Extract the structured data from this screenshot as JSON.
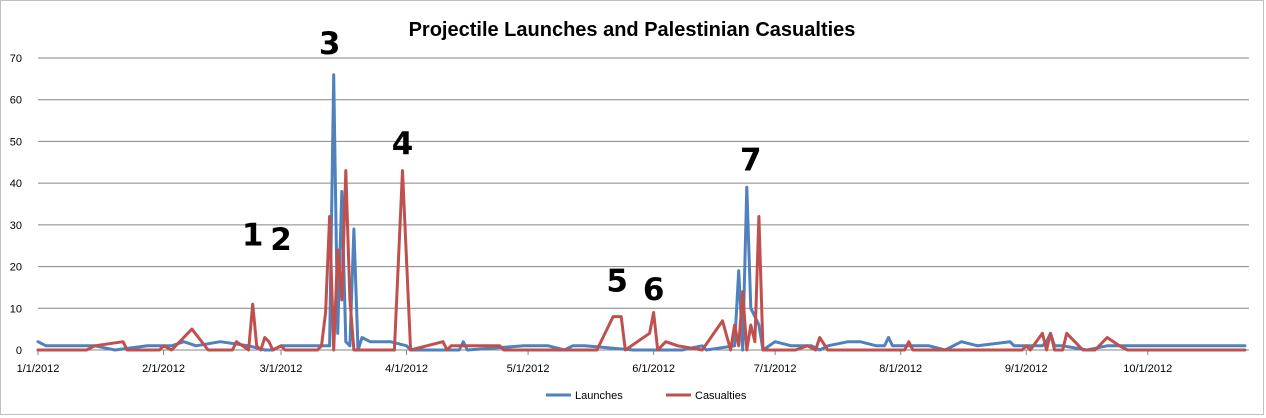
{
  "chart_data": {
    "type": "line",
    "title": "Projectile Launches and Palestinian Casualties",
    "xlabel": "",
    "ylabel": "",
    "x_axis": {
      "type": "date",
      "start": "2012-01-01",
      "end": "2012-10-26",
      "ticks": [
        {
          "date": "2012-01-01",
          "label": "1/1/2012"
        },
        {
          "date": "2012-02-01",
          "label": "2/1/2012"
        },
        {
          "date": "2012-03-01",
          "label": "3/1/2012"
        },
        {
          "date": "2012-04-01",
          "label": "4/1/2012"
        },
        {
          "date": "2012-05-01",
          "label": "5/1/2012"
        },
        {
          "date": "2012-06-01",
          "label": "6/1/2012"
        },
        {
          "date": "2012-07-01",
          "label": "7/1/2012"
        },
        {
          "date": "2012-08-01",
          "label": "8/1/2012"
        },
        {
          "date": "2012-09-01",
          "label": "9/1/2012"
        },
        {
          "date": "2012-10-01",
          "label": "10/1/2012"
        }
      ]
    },
    "ylim": [
      0,
      70
    ],
    "yticks": [
      0,
      10,
      20,
      30,
      40,
      50,
      60,
      70
    ],
    "grid": true,
    "legend_position": "bottom",
    "series": [
      {
        "name": "Launches",
        "color": "#4f81bd",
        "points": [
          [
            "2012-01-01",
            2
          ],
          [
            "2012-01-03",
            1
          ],
          [
            "2012-01-15",
            1
          ],
          [
            "2012-01-20",
            0
          ],
          [
            "2012-01-28",
            1
          ],
          [
            "2012-02-03",
            1
          ],
          [
            "2012-02-06",
            2
          ],
          [
            "2012-02-09",
            1
          ],
          [
            "2012-02-15",
            2
          ],
          [
            "2012-02-22",
            1
          ],
          [
            "2012-02-26",
            0
          ],
          [
            "2012-02-28",
            0
          ],
          [
            "2012-03-01",
            1
          ],
          [
            "2012-03-04",
            1
          ],
          [
            "2012-03-08",
            1
          ],
          [
            "2012-03-12",
            1
          ],
          [
            "2012-03-13",
            1
          ],
          [
            "2012-03-14",
            66
          ],
          [
            "2012-03-15",
            4
          ],
          [
            "2012-03-16",
            38
          ],
          [
            "2012-03-17",
            2
          ],
          [
            "2012-03-18",
            1
          ],
          [
            "2012-03-19",
            29
          ],
          [
            "2012-03-20",
            0
          ],
          [
            "2012-03-21",
            3
          ],
          [
            "2012-03-23",
            2
          ],
          [
            "2012-03-28",
            2
          ],
          [
            "2012-04-01",
            1
          ],
          [
            "2012-04-02",
            0
          ],
          [
            "2012-04-14",
            0
          ],
          [
            "2012-04-15",
            2
          ],
          [
            "2012-04-16",
            0
          ],
          [
            "2012-04-30",
            1
          ],
          [
            "2012-05-06",
            1
          ],
          [
            "2012-05-10",
            0
          ],
          [
            "2012-05-12",
            1
          ],
          [
            "2012-05-15",
            1
          ],
          [
            "2012-05-27",
            0
          ],
          [
            "2012-06-08",
            0
          ],
          [
            "2012-06-13",
            1
          ],
          [
            "2012-06-14",
            0
          ],
          [
            "2012-06-21",
            1
          ],
          [
            "2012-06-22",
            19
          ],
          [
            "2012-06-23",
            0
          ],
          [
            "2012-06-24",
            39
          ],
          [
            "2012-06-25",
            10
          ],
          [
            "2012-06-26",
            8
          ],
          [
            "2012-06-27",
            6
          ],
          [
            "2012-06-28",
            0
          ],
          [
            "2012-07-01",
            2
          ],
          [
            "2012-07-05",
            1
          ],
          [
            "2012-07-10",
            1
          ],
          [
            "2012-07-12",
            0
          ],
          [
            "2012-07-14",
            1
          ],
          [
            "2012-07-19",
            2
          ],
          [
            "2012-07-22",
            2
          ],
          [
            "2012-07-26",
            1
          ],
          [
            "2012-07-28",
            1
          ],
          [
            "2012-07-29",
            3
          ],
          [
            "2012-07-30",
            1
          ],
          [
            "2012-08-02",
            1
          ],
          [
            "2012-08-08",
            1
          ],
          [
            "2012-08-12",
            0
          ],
          [
            "2012-08-16",
            2
          ],
          [
            "2012-08-20",
            1
          ],
          [
            "2012-08-28",
            2
          ],
          [
            "2012-08-29",
            1
          ],
          [
            "2012-09-05",
            1
          ],
          [
            "2012-09-06",
            2
          ],
          [
            "2012-09-07",
            4
          ],
          [
            "2012-09-08",
            1
          ],
          [
            "2012-09-10",
            1
          ],
          [
            "2012-09-16",
            0
          ],
          [
            "2012-09-21",
            1
          ],
          [
            "2012-09-25",
            1
          ],
          [
            "2012-10-01",
            1
          ],
          [
            "2012-10-08",
            1
          ],
          [
            "2012-10-15",
            1
          ],
          [
            "2012-10-25",
            1
          ]
        ]
      },
      {
        "name": "Casualties",
        "color": "#c0504d",
        "points": [
          [
            "2012-01-01",
            0
          ],
          [
            "2012-01-13",
            0
          ],
          [
            "2012-01-15",
            1
          ],
          [
            "2012-01-22",
            2
          ],
          [
            "2012-01-23",
            0
          ],
          [
            "2012-01-31",
            0
          ],
          [
            "2012-02-01",
            1
          ],
          [
            "2012-02-03",
            0
          ],
          [
            "2012-02-08",
            5
          ],
          [
            "2012-02-12",
            0
          ],
          [
            "2012-02-18",
            0
          ],
          [
            "2012-02-19",
            2
          ],
          [
            "2012-02-22",
            0
          ],
          [
            "2012-02-23",
            11
          ],
          [
            "2012-02-24",
            1
          ],
          [
            "2012-02-25",
            0
          ],
          [
            "2012-02-26",
            3
          ],
          [
            "2012-02-27",
            2
          ],
          [
            "2012-02-28",
            0
          ],
          [
            "2012-03-01",
            1
          ],
          [
            "2012-03-02",
            0
          ],
          [
            "2012-03-10",
            0
          ],
          [
            "2012-03-11",
            1
          ],
          [
            "2012-03-12",
            9
          ],
          [
            "2012-03-13",
            32
          ],
          [
            "2012-03-14",
            0
          ],
          [
            "2012-03-15",
            24
          ],
          [
            "2012-03-16",
            12
          ],
          [
            "2012-03-17",
            43
          ],
          [
            "2012-03-18",
            12
          ],
          [
            "2012-03-19",
            0
          ],
          [
            "2012-03-20",
            0
          ],
          [
            "2012-03-29",
            0
          ],
          [
            "2012-03-31",
            43
          ],
          [
            "2012-04-02",
            0
          ],
          [
            "2012-04-06",
            1
          ],
          [
            "2012-04-10",
            2
          ],
          [
            "2012-04-11",
            0
          ],
          [
            "2012-04-12",
            1
          ],
          [
            "2012-04-24",
            1
          ],
          [
            "2012-04-25",
            0
          ],
          [
            "2012-05-18",
            0
          ],
          [
            "2012-05-22",
            8
          ],
          [
            "2012-05-24",
            8
          ],
          [
            "2012-05-25",
            0
          ],
          [
            "2012-05-31",
            4
          ],
          [
            "2012-06-01",
            9
          ],
          [
            "2012-06-02",
            0
          ],
          [
            "2012-06-04",
            2
          ],
          [
            "2012-06-07",
            1
          ],
          [
            "2012-06-13",
            0
          ],
          [
            "2012-06-18",
            7
          ],
          [
            "2012-06-20",
            0
          ],
          [
            "2012-06-21",
            6
          ],
          [
            "2012-06-22",
            1
          ],
          [
            "2012-06-23",
            14
          ],
          [
            "2012-06-24",
            0
          ],
          [
            "2012-06-25",
            6
          ],
          [
            "2012-06-26",
            2
          ],
          [
            "2012-06-27",
            32
          ],
          [
            "2012-06-28",
            0
          ],
          [
            "2012-07-06",
            0
          ],
          [
            "2012-07-09",
            1
          ],
          [
            "2012-07-11",
            0
          ],
          [
            "2012-07-12",
            3
          ],
          [
            "2012-07-14",
            0
          ],
          [
            "2012-08-02",
            0
          ],
          [
            "2012-08-03",
            2
          ],
          [
            "2012-08-04",
            0
          ],
          [
            "2012-08-31",
            0
          ],
          [
            "2012-09-01",
            1
          ],
          [
            "2012-09-02",
            0
          ],
          [
            "2012-09-05",
            4
          ],
          [
            "2012-09-06",
            0
          ],
          [
            "2012-09-07",
            4
          ],
          [
            "2012-09-08",
            0
          ],
          [
            "2012-09-10",
            0
          ],
          [
            "2012-09-11",
            4
          ],
          [
            "2012-09-13",
            2
          ],
          [
            "2012-09-15",
            0
          ],
          [
            "2012-09-18",
            0
          ],
          [
            "2012-09-21",
            3
          ],
          [
            "2012-09-24",
            1
          ],
          [
            "2012-09-26",
            0
          ],
          [
            "2012-10-25",
            0
          ]
        ]
      }
    ],
    "annotations": [
      {
        "label": "1",
        "date": "2012-02-23",
        "value": 25
      },
      {
        "label": "2",
        "date": "2012-03-01",
        "value": 24
      },
      {
        "label": "3",
        "date": "2012-03-13",
        "value": 71
      },
      {
        "label": "4",
        "date": "2012-03-31",
        "value": 47
      },
      {
        "label": "5",
        "date": "2012-05-23",
        "value": 14
      },
      {
        "label": "6",
        "date": "2012-06-01",
        "value": 12
      },
      {
        "label": "7",
        "date": "2012-06-25",
        "value": 43
      }
    ]
  }
}
